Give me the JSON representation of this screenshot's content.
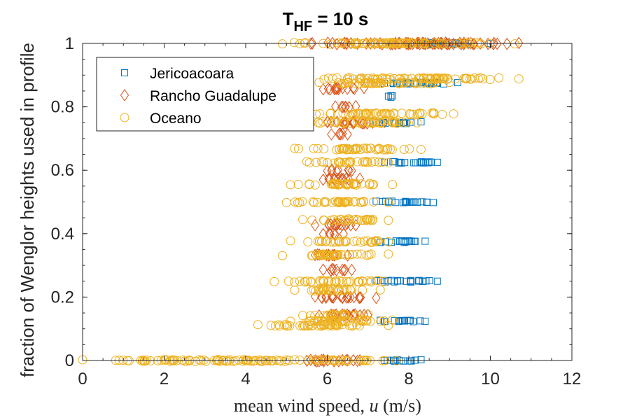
{
  "chart_data": {
    "type": "scatter",
    "title": "T",
    "title_sub": "HF",
    "title_rest": " = 10 s",
    "xlabel_prefix": "mean wind speed, ",
    "xlabel_var": "u",
    "xlabel_suffix": " (m/s)",
    "ylabel": "fraction of Wenglor heights used in profile",
    "xlim": [
      0,
      12
    ],
    "ylim": [
      0,
      1
    ],
    "xticks": [
      "0",
      "2",
      "4",
      "6",
      "8",
      "10",
      "12"
    ],
    "yticks": [
      "0",
      "0.2",
      "0.4",
      "0.6",
      "0.8",
      "1"
    ],
    "grid": false,
    "legend_position": "top-left",
    "series": [
      {
        "name": "Jericoacoara",
        "marker": "square",
        "color": "#0072BD",
        "bands": [
          {
            "y": 1.0,
            "xmin": 7.6,
            "xmax": 10.0
          },
          {
            "y": 0.875,
            "xmin": 7.4,
            "xmax": 9.2
          },
          {
            "y": 0.833,
            "xmin": 7.5,
            "xmax": 7.6
          },
          {
            "y": 0.75,
            "xmin": 7.2,
            "xmax": 8.3
          },
          {
            "y": 0.625,
            "xmin": 7.4,
            "xmax": 8.7
          },
          {
            "y": 0.5,
            "xmin": 7.2,
            "xmax": 8.6
          },
          {
            "y": 0.375,
            "xmin": 7.3,
            "xmax": 8.4
          },
          {
            "y": 0.25,
            "xmin": 7.2,
            "xmax": 8.7
          },
          {
            "y": 0.125,
            "xmin": 7.3,
            "xmax": 8.4
          },
          {
            "y": 0.0,
            "xmin": 7.4,
            "xmax": 8.3
          }
        ]
      },
      {
        "name": "Rancho Guadalupe",
        "marker": "diamond",
        "color": "#D95319",
        "bands": [
          {
            "y": 1.0,
            "xmin": 5.6,
            "xmax": 10.7
          },
          {
            "y": 0.857,
            "xmin": 5.9,
            "xmax": 6.9
          },
          {
            "y": 0.8,
            "xmin": 6.2,
            "xmax": 6.7
          },
          {
            "y": 0.75,
            "xmin": 6.0,
            "xmax": 7.4
          },
          {
            "y": 0.714,
            "xmin": 6.1,
            "xmax": 6.5
          },
          {
            "y": 0.6,
            "xmin": 6.0,
            "xmax": 6.6
          },
          {
            "y": 0.571,
            "xmin": 5.9,
            "xmax": 6.8
          },
          {
            "y": 0.429,
            "xmin": 5.7,
            "xmax": 6.7
          },
          {
            "y": 0.4,
            "xmin": 5.9,
            "xmax": 6.4
          },
          {
            "y": 0.333,
            "xmin": 5.7,
            "xmax": 6.5
          },
          {
            "y": 0.286,
            "xmin": 5.9,
            "xmax": 6.6
          },
          {
            "y": 0.2,
            "xmin": 5.7,
            "xmax": 7.2
          },
          {
            "y": 0.143,
            "xmin": 5.8,
            "xmax": 7.0
          },
          {
            "y": 0.0,
            "xmin": 5.5,
            "xmax": 6.8
          }
        ]
      },
      {
        "name": "Oceano",
        "marker": "circle",
        "color": "#EDB120",
        "bands": [
          {
            "y": 1.0,
            "xmin": 4.9,
            "xmax": 10.6
          },
          {
            "y": 0.889,
            "xmin": 5.4,
            "xmax": 10.7
          },
          {
            "y": 0.875,
            "xmin": 5.8,
            "xmax": 9.0
          },
          {
            "y": 0.778,
            "xmin": 5.3,
            "xmax": 9.1
          },
          {
            "y": 0.75,
            "xmin": 5.6,
            "xmax": 8.2
          },
          {
            "y": 0.667,
            "xmin": 5.2,
            "xmax": 8.3
          },
          {
            "y": 0.625,
            "xmin": 5.5,
            "xmax": 7.5
          },
          {
            "y": 0.556,
            "xmin": 5.1,
            "xmax": 7.6
          },
          {
            "y": 0.5,
            "xmin": 5.0,
            "xmax": 7.5
          },
          {
            "y": 0.444,
            "xmin": 5.4,
            "xmax": 7.5
          },
          {
            "y": 0.375,
            "xmin": 5.1,
            "xmax": 7.5
          },
          {
            "y": 0.333,
            "xmin": 4.9,
            "xmax": 7.5
          },
          {
            "y": 0.25,
            "xmin": 4.7,
            "xmax": 7.4
          },
          {
            "y": 0.222,
            "xmin": 5.2,
            "xmax": 7.3
          },
          {
            "y": 0.143,
            "xmin": 5.4,
            "xmax": 7.0
          },
          {
            "y": 0.125,
            "xmin": 5.1,
            "xmax": 7.6
          },
          {
            "y": 0.111,
            "xmin": 4.3,
            "xmax": 7.5
          },
          {
            "y": 0.0,
            "xmin": 0.0,
            "xmax": 7.7
          }
        ]
      }
    ]
  }
}
